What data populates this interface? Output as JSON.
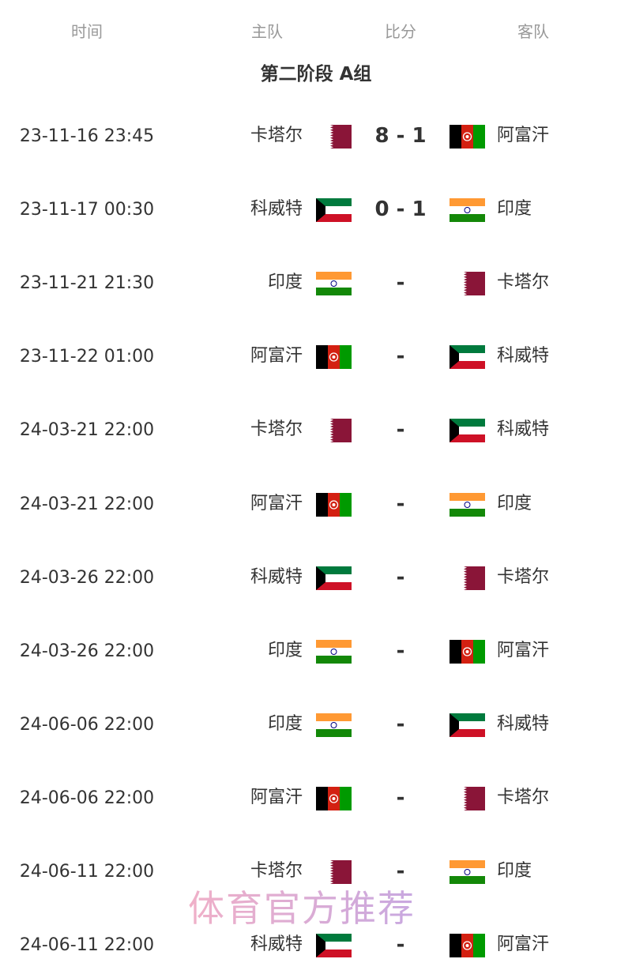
{
  "headers": {
    "time": "时间",
    "home": "主队",
    "score": "比分",
    "away": "客队"
  },
  "title": "第二阶段 A组",
  "teams": {
    "卡塔尔": "qatar",
    "阿富汗": "afghanistan",
    "科威特": "kuwait",
    "印度": "india"
  },
  "matches": [
    {
      "time": "23-11-16 23:45",
      "home": "卡塔尔",
      "score": "8 - 1",
      "away": "阿富汗"
    },
    {
      "time": "23-11-17 00:30",
      "home": "科威特",
      "score": "0 - 1",
      "away": "印度"
    },
    {
      "time": "23-11-21 21:30",
      "home": "印度",
      "score": "-",
      "away": "卡塔尔"
    },
    {
      "time": "23-11-22 01:00",
      "home": "阿富汗",
      "score": "-",
      "away": "科威特"
    },
    {
      "time": "24-03-21 22:00",
      "home": "卡塔尔",
      "score": "-",
      "away": "科威特"
    },
    {
      "time": "24-03-21 22:00",
      "home": "阿富汗",
      "score": "-",
      "away": "印度"
    },
    {
      "time": "24-03-26 22:00",
      "home": "科威特",
      "score": "-",
      "away": "卡塔尔"
    },
    {
      "time": "24-03-26 22:00",
      "home": "印度",
      "score": "-",
      "away": "阿富汗"
    },
    {
      "time": "24-06-06 22:00",
      "home": "印度",
      "score": "-",
      "away": "科威特"
    },
    {
      "time": "24-06-06 22:00",
      "home": "阿富汗",
      "score": "-",
      "away": "卡塔尔"
    },
    {
      "time": "24-06-11 22:00",
      "home": "卡塔尔",
      "score": "-",
      "away": "印度"
    },
    {
      "time": "24-06-11 22:00",
      "home": "科威特",
      "score": "-",
      "away": "阿富汗"
    }
  ],
  "watermark": "体育官方推荐",
  "colors": {
    "text": "#333333",
    "header": "#999999",
    "qatar": "#8a1538",
    "afghan_black": "#000000",
    "afghan_red": "#d32011",
    "afghan_green": "#009a00",
    "kuwait_green": "#007a3d",
    "kuwait_red": "#ce1126",
    "india_saffron": "#ff9933",
    "india_green": "#138808"
  }
}
